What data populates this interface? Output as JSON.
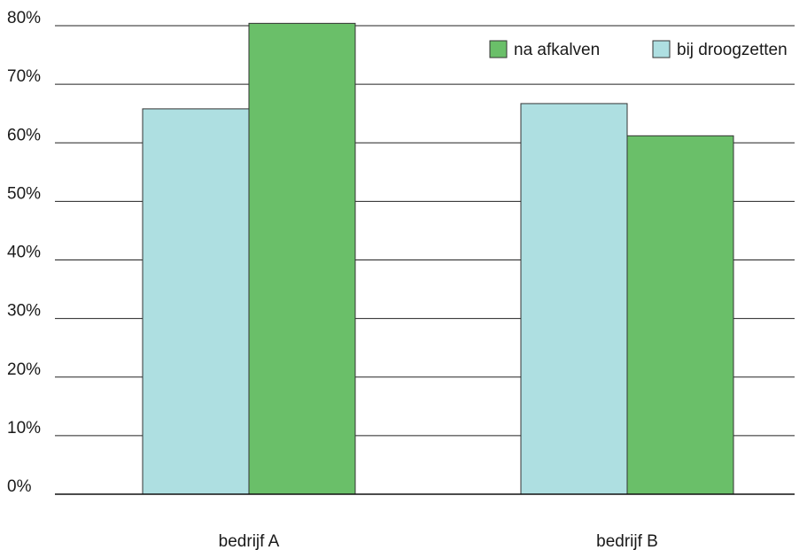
{
  "chart_data": {
    "type": "bar",
    "title": "",
    "xlabel": "",
    "ylabel": "",
    "ylim": [
      0,
      80
    ],
    "yticks": [
      0,
      10,
      20,
      30,
      40,
      50,
      60,
      70,
      80
    ],
    "ytick_labels": [
      "0%",
      "10%",
      "20%",
      "30%",
      "40%",
      "50%",
      "60%",
      "70%",
      "80%"
    ],
    "grid": true,
    "legend_position": "top-right",
    "categories": [
      "bedrijf A",
      "bedrijf B"
    ],
    "series": [
      {
        "name": "bij droogzetten",
        "values": [
          65.8,
          66.7
        ],
        "color": "#aedfe1"
      },
      {
        "name": "na afkalven",
        "values": [
          80.4,
          61.2
        ],
        "color": "#6abf69"
      }
    ],
    "legend_order": [
      "na afkalven",
      "bij droogzetten"
    ]
  }
}
